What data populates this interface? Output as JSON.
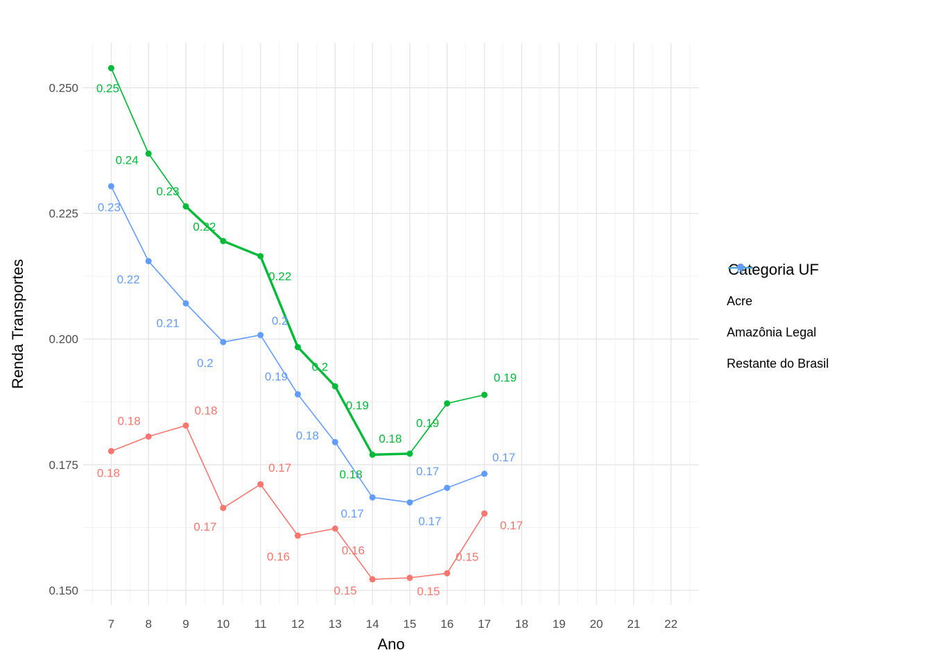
{
  "chart_data": {
    "type": "line",
    "title": "",
    "xlabel": "Ano",
    "ylabel": "Renda Transportes",
    "x": [
      7,
      8,
      9,
      10,
      11,
      12,
      13,
      14,
      15,
      16,
      17
    ],
    "x_ticks": [
      7,
      8,
      9,
      10,
      11,
      12,
      13,
      14,
      15,
      16,
      17,
      18,
      19,
      20,
      21,
      22
    ],
    "y_ticks": [
      "0.150",
      "0.175",
      "0.200",
      "0.225",
      "0.250"
    ],
    "y_tick_values": [
      0.15,
      0.175,
      0.2,
      0.225,
      0.25
    ],
    "xlim": [
      6.25,
      22.75
    ],
    "ylim": [
      0.1471,
      0.2589
    ],
    "grid": "major+minor",
    "legend": {
      "title": "Categoria UF",
      "position": "right"
    },
    "series": [
      {
        "name": "Acre",
        "color": "#F8766D",
        "linewidth": 1.6,
        "values": [
          0.1777,
          0.1806,
          0.1828,
          0.1664,
          0.1711,
          0.1609,
          0.1623,
          0.1522,
          0.1525,
          0.1534,
          0.1653
        ],
        "point_labels": [
          "0.18",
          "0.18",
          "0.18",
          "0.17",
          "0.17",
          "0.16",
          "0.16",
          "0.15",
          "0.15",
          "0.15",
          "0.17"
        ],
        "label_offsets": [
          [
            -4,
            31
          ],
          [
            -28,
            -23
          ],
          [
            29,
            -22
          ],
          [
            -26,
            27
          ],
          [
            28,
            -24
          ],
          [
            -28,
            30
          ],
          [
            26,
            31
          ],
          [
            -39,
            16
          ],
          [
            27,
            19
          ],
          [
            29,
            -24
          ],
          [
            39,
            17
          ]
        ]
      },
      {
        "name": "Amazônia Legal",
        "color": "#00BA38",
        "linewidth": 1.7,
        "thick_span": [
          9,
          15
        ],
        "thick_width": 3.4,
        "values": [
          0.2539,
          0.2369,
          0.2264,
          0.2195,
          0.2165,
          0.1984,
          0.1906,
          0.177,
          0.1772,
          0.1872,
          0.1889
        ],
        "point_labels": [
          "0.25",
          "0.24",
          "0.23",
          "0.22",
          "0.22",
          "0.2",
          "0.19",
          "0.18",
          "0.18",
          "0.19",
          "0.19"
        ],
        "label_offsets": [
          [
            -5,
            29
          ],
          [
            -31,
            9
          ],
          [
            -26,
            -22
          ],
          [
            -27,
            -21
          ],
          [
            28,
            29
          ],
          [
            32,
            28
          ],
          [
            32,
            27
          ],
          [
            -31,
            28
          ],
          [
            -28,
            -22
          ],
          [
            -28,
            28
          ],
          [
            30,
            -25
          ]
        ]
      },
      {
        "name": "Restante do Brasil",
        "color": "#619CFF",
        "linewidth": 1.6,
        "values": [
          0.2304,
          0.2155,
          0.2071,
          0.1994,
          0.2008,
          0.189,
          0.1795,
          0.1685,
          0.1675,
          0.1704,
          0.1732
        ],
        "point_labels": [
          "0.23",
          "0.22",
          "0.21",
          "0.2",
          "0.2",
          "0.19",
          "0.18",
          "0.17",
          "0.17",
          "0.17",
          "0.17"
        ],
        "label_offsets": [
          [
            -3,
            30
          ],
          [
            -29,
            26
          ],
          [
            -26,
            28
          ],
          [
            -26,
            30
          ],
          [
            28,
            -21
          ],
          [
            -31,
            -26
          ],
          [
            -40,
            -10
          ],
          [
            -29,
            23
          ],
          [
            29,
            27
          ],
          [
            -28,
            -24
          ],
          [
            28,
            -24
          ]
        ]
      }
    ]
  },
  "colors": {
    "background": "#FFFFFF",
    "grid_major": "#E3E3E3",
    "grid_minor": "#F1F1F1",
    "tick_label": "#4D4D4D",
    "axis_title": "#000000",
    "legend_key_glyph": "a"
  }
}
